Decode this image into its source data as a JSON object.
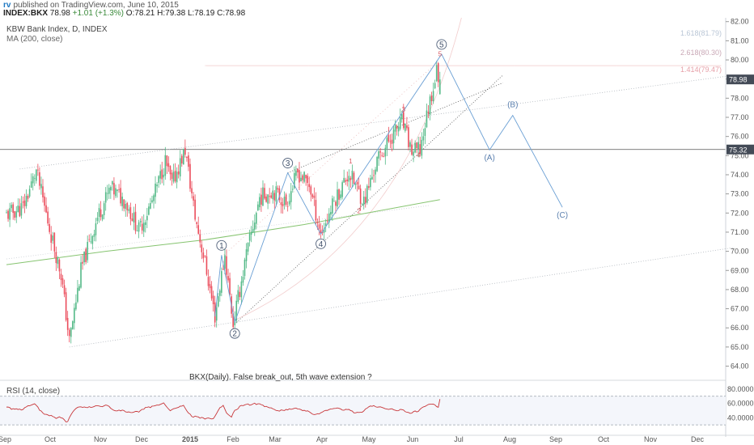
{
  "header": {
    "brand": "rv",
    "published": "published on TradingView.com, June 10, 2015",
    "symbol": "INDEX:BKX",
    "last": "78.98",
    "change": "+1.01 (+1.3%)",
    "open": "O:78.21",
    "high": "H:79.38",
    "low": "L:78.19",
    "close": "C:78.98"
  },
  "legend": {
    "title": "KBW Bank Index, D, INDEX",
    "ma": "MA (200, close)"
  },
  "rsi": {
    "label": "RSI (14, close)",
    "ticks": [
      "80.0000",
      "60.0000",
      "40.0000"
    ]
  },
  "annotation_note": "BKX(Daily). False break_out, 5th wave extension ?",
  "price_tags": {
    "last": "78.98",
    "line": "75.32"
  },
  "fib_labels": [
    "1.618(81.79)",
    "2.618(80.30)",
    "1.414(79.47)"
  ],
  "colors": {
    "up": "#53b987",
    "down": "#eb4d5c",
    "wave": "#6a9fd4",
    "ma": "#86c470",
    "rsi": "#c8373a",
    "tag": "#444b57"
  },
  "chart_data": {
    "type": "candlestick",
    "title": "KBW Bank Index, D, INDEX",
    "x_ticks": [
      "Sep",
      "Oct",
      "Nov",
      "Dec",
      "2015",
      "Feb",
      "Mar",
      "Apr",
      "May",
      "Jun",
      "Jul",
      "Aug",
      "Sep",
      "Oct",
      "Nov",
      "Dec"
    ],
    "y_ticks": [
      "82.00",
      "81.00",
      "80.00",
      "79.00",
      "78.00",
      "77.00",
      "76.00",
      "75.00",
      "74.00",
      "73.00",
      "72.00",
      "71.00",
      "70.00",
      "69.00",
      "68.00",
      "67.00",
      "66.00",
      "65.00",
      "64.00"
    ],
    "ylim": [
      63.6,
      82.2
    ],
    "price_path": [
      {
        "d": 0,
        "v": 71.9
      },
      {
        "d": 10,
        "v": 72.3
      },
      {
        "d": 18,
        "v": 74.2
      },
      {
        "d": 26,
        "v": 71.2
      },
      {
        "d": 33,
        "v": 68.8
      },
      {
        "d": 38,
        "v": 65.3
      },
      {
        "d": 45,
        "v": 69.0
      },
      {
        "d": 55,
        "v": 71.8
      },
      {
        "d": 63,
        "v": 73.3
      },
      {
        "d": 72,
        "v": 72.6
      },
      {
        "d": 80,
        "v": 71.1
      },
      {
        "d": 88,
        "v": 72.6
      },
      {
        "d": 96,
        "v": 74.7
      },
      {
        "d": 100,
        "v": 73.5
      },
      {
        "d": 108,
        "v": 75.3
      },
      {
        "d": 114,
        "v": 71.8
      },
      {
        "d": 120,
        "v": 69.4
      },
      {
        "d": 126,
        "v": 66.6
      },
      {
        "d": 132,
        "v": 69.8
      },
      {
        "d": 137,
        "v": 66.2
      },
      {
        "d": 145,
        "v": 69.8
      },
      {
        "d": 153,
        "v": 72.8
      },
      {
        "d": 161,
        "v": 73.2
      },
      {
        "d": 169,
        "v": 72.5
      },
      {
        "d": 176,
        "v": 74.1
      },
      {
        "d": 183,
        "v": 73.5
      },
      {
        "d": 190,
        "v": 70.9
      },
      {
        "d": 198,
        "v": 72.6
      },
      {
        "d": 207,
        "v": 74.1
      },
      {
        "d": 216,
        "v": 72.6
      },
      {
        "d": 224,
        "v": 74.7
      },
      {
        "d": 232,
        "v": 75.9
      },
      {
        "d": 239,
        "v": 76.8
      },
      {
        "d": 245,
        "v": 75.2
      },
      {
        "d": 250,
        "v": 75.3
      },
      {
        "d": 255,
        "v": 77.5
      },
      {
        "d": 260,
        "v": 79.4
      },
      {
        "d": 262,
        "v": 78.98
      }
    ],
    "ma200": [
      {
        "d": 0,
        "v": 69.3
      },
      {
        "d": 60,
        "v": 70.0
      },
      {
        "d": 120,
        "v": 70.6
      },
      {
        "d": 180,
        "v": 71.4
      },
      {
        "d": 262,
        "v": 72.7
      }
    ],
    "elliott_waves": [
      {
        "label": "1",
        "d": 130,
        "v": 69.8
      },
      {
        "label": "2",
        "d": 138,
        "v": 66.3
      },
      {
        "label": "3",
        "d": 170,
        "v": 74.1
      },
      {
        "label": "4",
        "d": 190,
        "v": 70.9
      },
      {
        "label": "5",
        "d": 263,
        "v": 80.3
      },
      {
        "label": "(A)",
        "d": 292,
        "v": 75.3
      },
      {
        "label": "(B)",
        "d": 306,
        "v": 77.1
      },
      {
        "label": "(C)",
        "d": 336,
        "v": 72.3
      }
    ],
    "sub_waves": [
      "1",
      "2",
      "3",
      "4",
      "5"
    ]
  }
}
